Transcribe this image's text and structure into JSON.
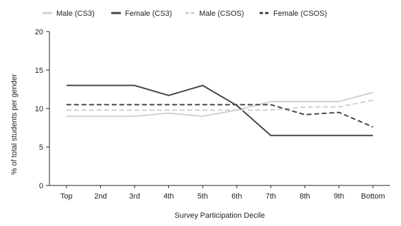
{
  "chart_data": {
    "type": "line",
    "title": "",
    "xlabel": "Survey Participation Decile",
    "ylabel": "% of total students per gender",
    "categories": [
      "Top",
      "2nd",
      "3rd",
      "4th",
      "5th",
      "6th",
      "7th",
      "8th",
      "9th",
      "Bottom"
    ],
    "ylim": [
      0,
      20
    ],
    "yticks": [
      0,
      5,
      10,
      15,
      20
    ],
    "grid": false,
    "legend_position": "top",
    "series": [
      {
        "name": "Male (CS3)",
        "color": "#d0d0d0",
        "dash": "solid",
        "values": [
          9.0,
          9.0,
          9.0,
          9.4,
          9.0,
          9.8,
          10.9,
          10.9,
          10.9,
          12.1
        ]
      },
      {
        "name": "Female (CS3)",
        "color": "#444444",
        "dash": "solid",
        "values": [
          13.0,
          13.0,
          13.0,
          11.7,
          13.0,
          10.4,
          6.5,
          6.5,
          6.5,
          6.5
        ]
      },
      {
        "name": "Male (CSOS)",
        "color": "#d0d0d0",
        "dash": "dashed",
        "values": [
          9.8,
          9.8,
          9.8,
          9.8,
          9.8,
          9.8,
          9.8,
          10.2,
          10.2,
          11.1
        ]
      },
      {
        "name": "Female (CSOS)",
        "color": "#444444",
        "dash": "dashed",
        "values": [
          10.5,
          10.5,
          10.5,
          10.5,
          10.5,
          10.5,
          10.5,
          9.2,
          9.5,
          7.6
        ]
      }
    ]
  }
}
